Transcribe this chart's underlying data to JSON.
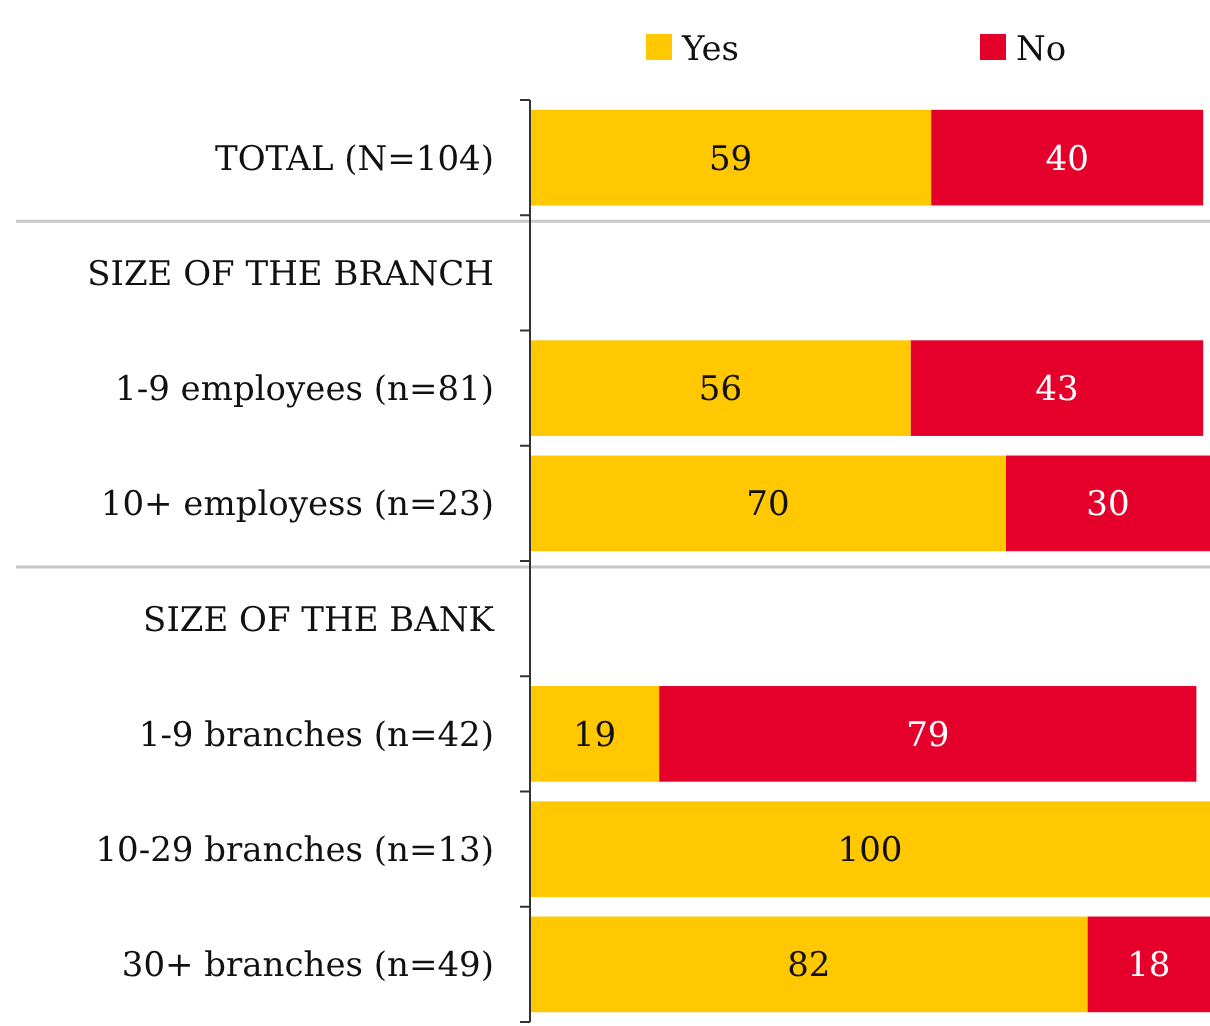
{
  "chart_data": {
    "type": "bar",
    "orientation": "horizontal",
    "stacked": true,
    "categories": [
      "TOTAL (N=104)",
      "SIZE OF THE BRANCH",
      "1-9 employees (n=81)",
      "10+ employess (n=23)",
      "SIZE OF THE BANK",
      "1-9 branches (n=42)",
      "10-29 branches (n=13)",
      "30+ branches (n=49)"
    ],
    "series": [
      {
        "name": "Yes",
        "color": "#ffc800",
        "values": [
          59,
          null,
          56,
          70,
          null,
          19,
          100,
          82
        ]
      },
      {
        "name": "No",
        "color": "#e4002b",
        "values": [
          40,
          null,
          43,
          30,
          null,
          79,
          null,
          18
        ]
      }
    ],
    "xlim": [
      0,
      100
    ],
    "tick_labels": "y",
    "data_labels": true,
    "legend": "top",
    "grid": false
  }
}
